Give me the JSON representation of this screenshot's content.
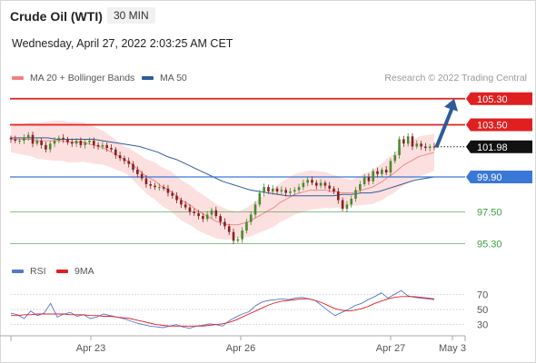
{
  "header": {
    "instrument": "Crude Oil (WTI)",
    "timeframe": "30 MIN",
    "datetime": "Wednesday, April 27, 2022 2:03:25 AM CET"
  },
  "legend": {
    "ma20_label": "MA 20 + Bollinger Bands",
    "ma50_label": "MA 50",
    "ma20_color": "#f08080",
    "ma50_color": "#2e5c9a",
    "credit": "Research © 2022 Trading Central"
  },
  "colors": {
    "resistance": "#e02020",
    "support": "#3a78d8",
    "target_green": "#3aa03a",
    "candle_up": "#4a8a2e",
    "candle_down": "#8a2020",
    "band_fill": "#fbd5d5",
    "arrow": "#2e5c9a",
    "rsi_line": "#5577cc",
    "rsi_ma_line": "#e02020"
  },
  "chart_data": [
    {
      "type": "candlestick",
      "ylim": [
        94.2,
        106.1
      ],
      "x_ticks": [
        "Apr 23",
        "Apr 26",
        "Apr 27",
        "May 3"
      ],
      "last_price": "101.98",
      "levels": [
        {
          "value": 105.3,
          "label": "105.30",
          "kind": "resistance"
        },
        {
          "value": 103.5,
          "label": "103.50",
          "kind": "resistance"
        },
        {
          "value": 99.9,
          "label": "99.90",
          "kind": "support"
        },
        {
          "value": 97.5,
          "label": "97.50",
          "kind": "target"
        },
        {
          "value": 95.3,
          "label": "95.30",
          "kind": "target"
        }
      ],
      "closes": [
        102.5,
        102.4,
        102.4,
        102.6,
        102.8,
        102.2,
        102.4,
        102.1,
        101.8,
        102.2,
        102.4,
        102.6,
        102.5,
        102.3,
        102.2,
        102.4,
        102.1,
        102.3,
        102.4,
        102.1,
        102.0,
        102.1,
        101.9,
        101.8,
        101.4,
        101.2,
        101.0,
        100.8,
        100.4,
        100.1,
        99.8,
        99.4,
        99.3,
        99.2,
        99.2,
        99.1,
        98.8,
        98.6,
        98.3,
        98.0,
        97.8,
        97.5,
        97.4,
        97.2,
        97.0,
        97.3,
        97.6,
        97.2,
        96.8,
        96.5,
        96.1,
        95.5,
        95.6,
        96.2,
        96.8,
        97.3,
        98.0,
        98.8,
        99.2,
        98.9,
        99.1,
        98.9,
        99.0,
        98.8,
        98.9,
        99.0,
        99.2,
        99.5,
        99.7,
        99.5,
        99.3,
        99.5,
        99.3,
        99.1,
        98.9,
        98.3,
        97.7,
        98.0,
        98.4,
        99.0,
        99.4,
        99.9,
        99.6,
        100.3,
        100.1,
        100.4,
        100.2,
        101.0,
        101.4,
        102.5,
        102.2,
        102.7,
        102.0,
        102.2,
        102.0,
        101.9,
        102.0,
        101.98
      ],
      "ma20": [
        102.5,
        102.5,
        102.5,
        102.5,
        102.5,
        102.4,
        102.4,
        102.4,
        102.4,
        102.4,
        102.4,
        102.3,
        102.3,
        102.3,
        102.3,
        102.2,
        102.1,
        102.0,
        101.9,
        101.7,
        101.5,
        101.3,
        101.1,
        100.9,
        100.6,
        100.3,
        100.0,
        99.8,
        99.6,
        99.3,
        99.1,
        98.9,
        98.6,
        98.3,
        98.1,
        97.9,
        97.6,
        97.4,
        97.2,
        97.0,
        96.8,
        96.7,
        96.6,
        96.6,
        96.6,
        96.7,
        96.8,
        97.0,
        97.2,
        97.4,
        97.6,
        97.8,
        98.1,
        98.3,
        98.5,
        98.7,
        98.8,
        98.9,
        99.0,
        99.0,
        99.0,
        99.0,
        98.9,
        98.9,
        98.8,
        98.8,
        98.8,
        98.9,
        99.0,
        99.1,
        99.2,
        99.4,
        99.6,
        99.9,
        100.1,
        100.4,
        100.7,
        100.9,
        101.1,
        101.3,
        101.4,
        101.5,
        101.6
      ],
      "ma50": [
        102.6,
        102.6,
        102.6,
        102.6,
        102.6,
        102.5,
        102.5,
        102.5,
        102.5,
        102.5,
        102.4,
        102.3,
        102.2,
        102.1,
        102.0,
        101.8,
        101.6,
        101.3,
        101.1,
        100.8,
        100.5,
        100.2,
        99.9,
        99.6,
        99.4,
        99.2,
        99.0,
        98.9,
        98.8,
        98.7,
        98.6,
        98.6,
        98.6,
        98.6,
        98.6,
        98.6,
        98.7,
        98.7,
        98.8,
        98.8,
        98.9,
        99.1,
        99.3,
        99.5,
        99.7,
        99.8,
        99.9
      ]
    },
    {
      "type": "line",
      "title": "RSI",
      "series": [
        {
          "name": "RSI",
          "values": [
            45,
            43,
            38,
            48,
            42,
            45,
            58,
            40,
            44,
            46,
            41,
            43,
            38,
            40,
            44,
            42,
            40,
            38,
            35,
            32,
            30,
            28,
            27,
            26,
            28,
            30,
            27,
            25,
            28,
            29,
            31,
            30,
            28,
            35,
            40,
            44,
            47,
            55,
            60,
            62,
            63,
            64,
            63,
            65,
            66,
            64,
            62,
            55,
            48,
            42,
            46,
            50,
            55,
            58,
            63,
            67,
            72,
            65,
            70,
            75,
            68,
            66,
            65,
            64,
            63
          ]
        },
        {
          "name": "9MA",
          "values": [
            42,
            42,
            43,
            43,
            44,
            44,
            44,
            44,
            44,
            43,
            43,
            43,
            42,
            42,
            41,
            41,
            40,
            39,
            38,
            36,
            34,
            32,
            30,
            29,
            28,
            28,
            28,
            28,
            28,
            28,
            29,
            30,
            31,
            33,
            36,
            40,
            44,
            48,
            52,
            56,
            59,
            61,
            62,
            63,
            64,
            64,
            62,
            59,
            55,
            51,
            49,
            48,
            49,
            51,
            54,
            58,
            61,
            64,
            66,
            67,
            67,
            67,
            66,
            65,
            64
          ]
        }
      ],
      "ylim": [
        20,
        80
      ],
      "y_ticks": [
        70,
        50,
        30
      ]
    }
  ]
}
